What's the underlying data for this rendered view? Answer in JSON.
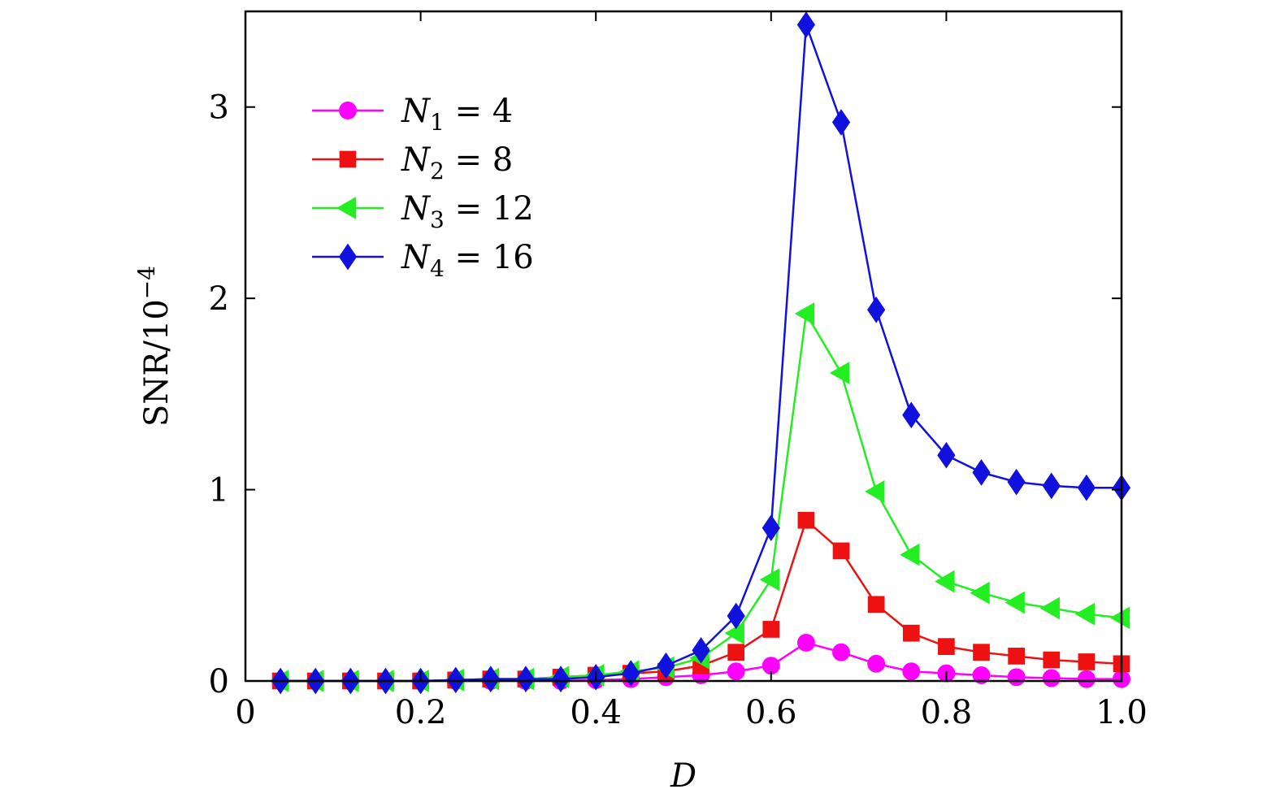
{
  "chart_data": {
    "type": "line",
    "xlabel": "D",
    "ylabel_main": "SNR/10",
    "ylabel_exp": "−4",
    "xlim": [
      0,
      1.0
    ],
    "ylim": [
      0,
      3.5
    ],
    "xticks": [
      0,
      0.2,
      0.4,
      0.6,
      0.8,
      1.0
    ],
    "xtick_labels": [
      "0",
      "0.2",
      "0.4",
      "0.6",
      "0.8",
      "1.0"
    ],
    "yticks": [
      0,
      1,
      2,
      3
    ],
    "ytick_labels": [
      "0",
      "1",
      "2",
      "3"
    ],
    "grid": false,
    "legend_position": "top-left",
    "x": [
      0.04,
      0.08,
      0.12,
      0.16,
      0.2,
      0.24,
      0.28,
      0.32,
      0.36,
      0.4,
      0.44,
      0.48,
      0.52,
      0.56,
      0.6,
      0.64,
      0.68,
      0.72,
      0.76,
      0.8,
      0.84,
      0.88,
      0.92,
      0.96,
      1.0
    ],
    "series": [
      {
        "name": "N1 = 4",
        "sym": "N",
        "sub": "1",
        "num": "4",
        "color": "#ff00ff",
        "marker": "circle",
        "values": [
          0.0,
          0.0,
          0.0,
          0.0,
          0.0,
          0.0,
          0.0,
          0.0,
          0.0,
          0.005,
          0.01,
          0.02,
          0.03,
          0.05,
          0.08,
          0.2,
          0.15,
          0.09,
          0.05,
          0.04,
          0.03,
          0.02,
          0.015,
          0.01,
          0.01
        ]
      },
      {
        "name": "N2 = 8",
        "sym": "N",
        "sub": "2",
        "num": "8",
        "color": "#ee1111",
        "marker": "square",
        "values": [
          0.0,
          0.0,
          0.0,
          0.0,
          0.0,
          0.005,
          0.01,
          0.01,
          0.02,
          0.03,
          0.04,
          0.05,
          0.08,
          0.15,
          0.27,
          0.84,
          0.68,
          0.4,
          0.25,
          0.18,
          0.15,
          0.13,
          0.11,
          0.1,
          0.09
        ]
      },
      {
        "name": "N3 = 12",
        "sym": "N",
        "sub": "3",
        "num": "12",
        "color": "#22ee22",
        "marker": "triangle-left",
        "values": [
          0.0,
          0.0,
          0.0,
          0.0,
          0.0,
          0.005,
          0.01,
          0.01,
          0.02,
          0.03,
          0.05,
          0.07,
          0.12,
          0.25,
          0.53,
          1.92,
          1.61,
          0.99,
          0.66,
          0.52,
          0.46,
          0.41,
          0.38,
          0.35,
          0.33
        ]
      },
      {
        "name": "N4 = 16",
        "sym": "N",
        "sub": "4",
        "num": "16",
        "color": "#1111dd",
        "marker": "diamond",
        "values": [
          0.0,
          0.0,
          0.0,
          0.0,
          0.0,
          0.005,
          0.01,
          0.01,
          0.01,
          0.02,
          0.04,
          0.08,
          0.16,
          0.34,
          0.8,
          3.43,
          2.92,
          1.94,
          1.39,
          1.18,
          1.09,
          1.04,
          1.02,
          1.01,
          1.01
        ]
      }
    ]
  }
}
